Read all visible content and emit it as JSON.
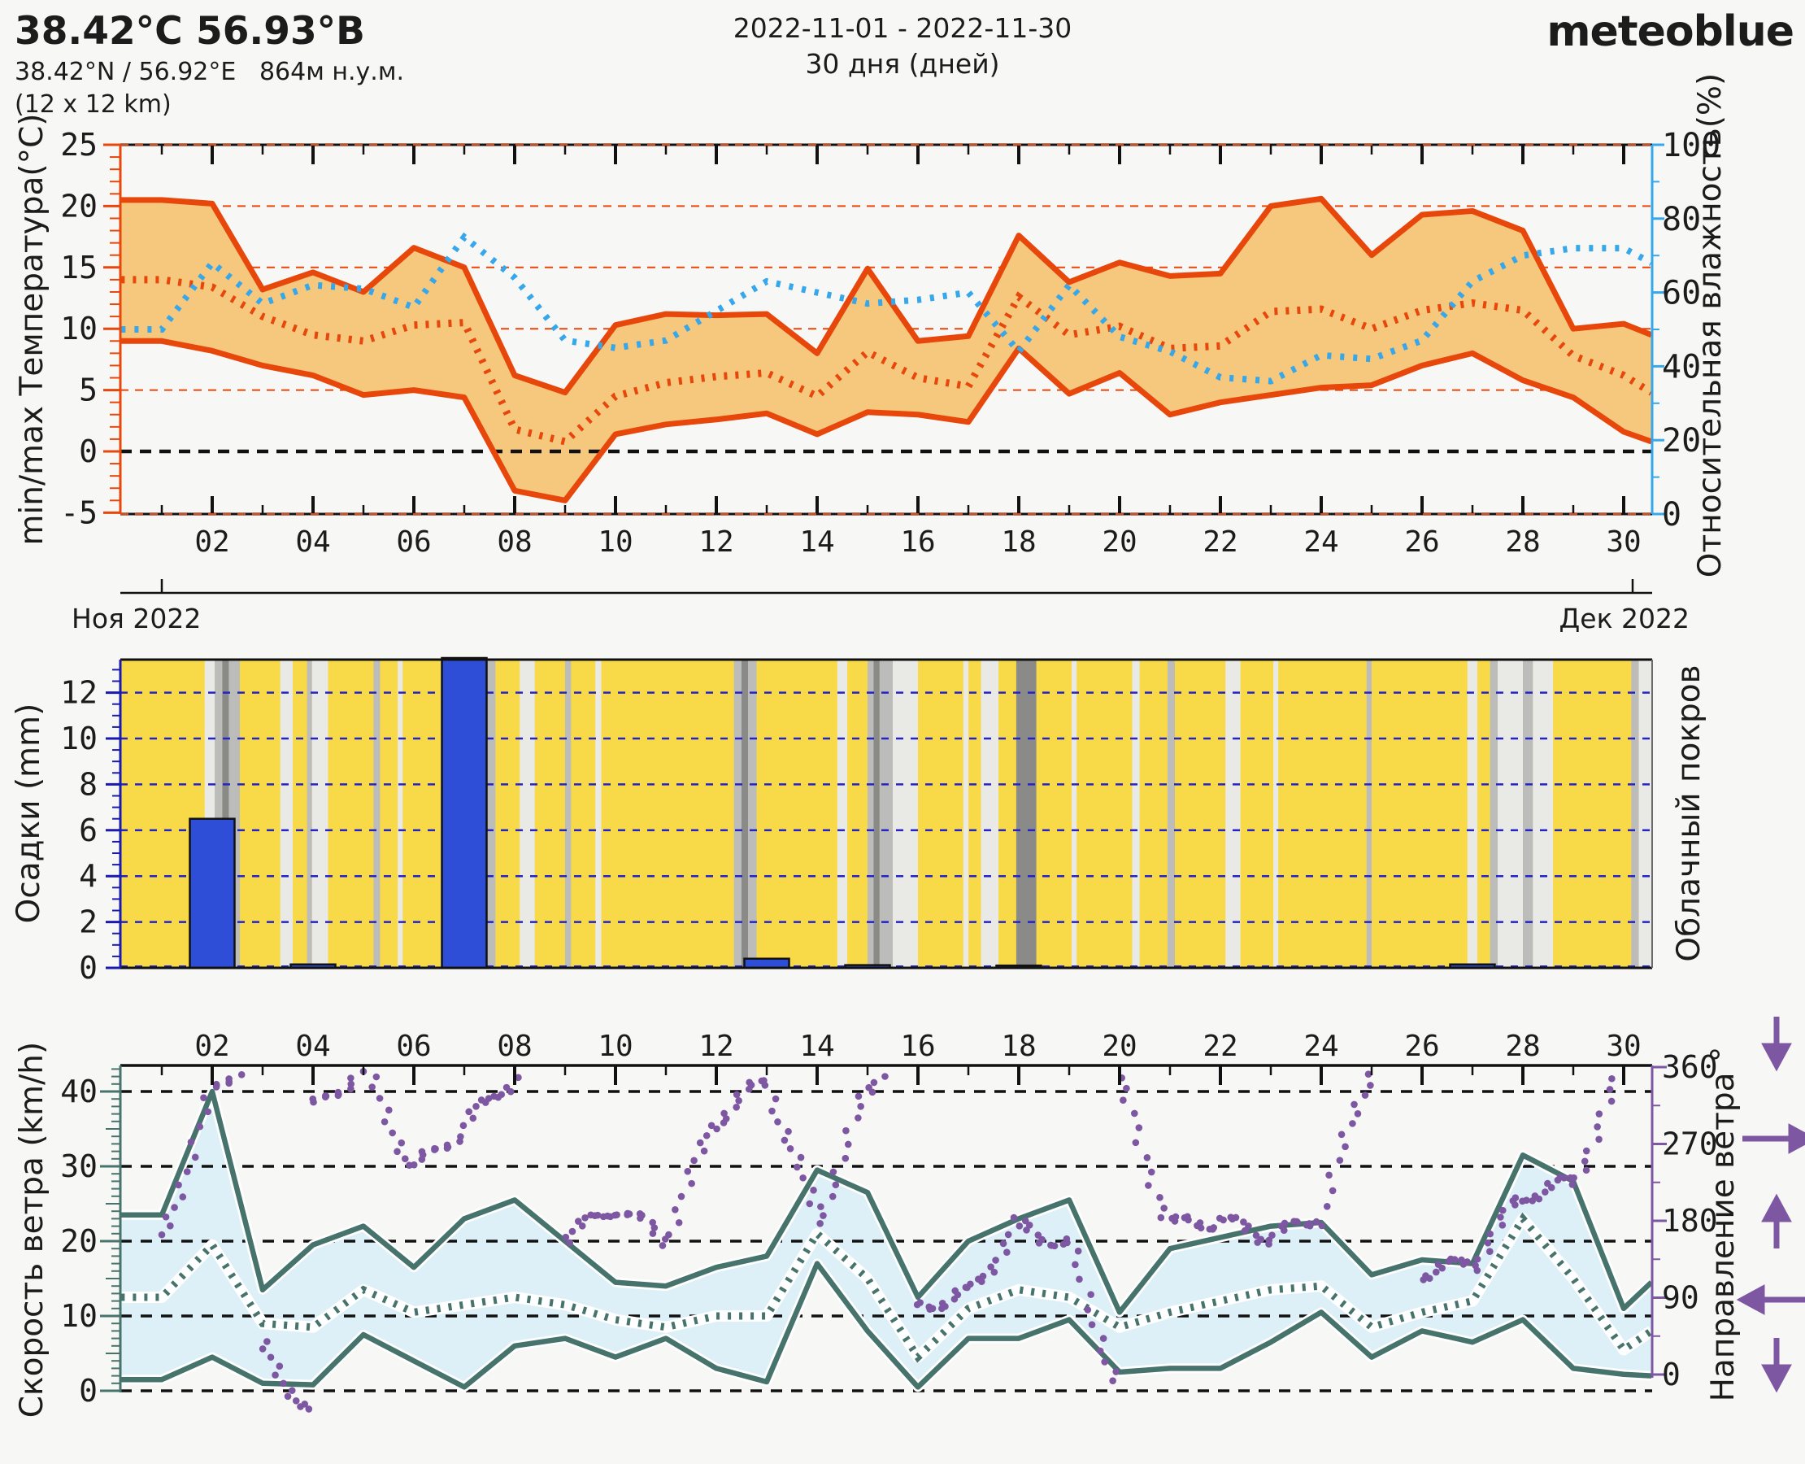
{
  "header": {
    "title": "38.42°C 56.93°B",
    "subtitle": "38.42°N / 56.92°E   864м н.у.м.",
    "resolution": "(12 x 12 km)",
    "date_range": "2022-11-01 - 2022-11-30",
    "duration": "30 дня (дней)",
    "logo": "meteoblue"
  },
  "months": {
    "left": "Ноя 2022",
    "right": "Дек 2022"
  },
  "colors": {
    "temp_line": "#e8470b",
    "temp_fill": "#f5c87d",
    "humidity": "#35a7ea",
    "precip_bar": "#2f4ed8",
    "precip_axis": "#1a1ab0",
    "cloud_sun": "#f8d948",
    "cloud_light": "#e9e9e6",
    "cloud_mid": "#bcbcba",
    "cloud_dark": "#8a8a88",
    "cloud_label": "#8c8c8a",
    "wind_line": "#47736d",
    "wind_fill": "#def0f7",
    "direction": "#7e57a3",
    "logo": "#1d4e7b",
    "text": "#1c1c1c",
    "background": "#f7f7f6"
  },
  "x_axis": {
    "day_labels": [
      "02",
      "04",
      "06",
      "08",
      "10",
      "12",
      "14",
      "16",
      "18",
      "20",
      "22",
      "24",
      "26",
      "28",
      "30"
    ]
  },
  "chart_data": [
    {
      "type": "area",
      "name": "temperature_and_humidity",
      "ylabel_left": "min/max Температура(°C)",
      "ylabel_right": "Относительная влажность(%)",
      "yticks_left": [
        -5,
        0,
        5,
        10,
        15,
        20,
        25
      ],
      "yticks_right": [
        0,
        20,
        40,
        60,
        80,
        100
      ],
      "ylim_left": [
        -5.1,
        25.0
      ],
      "ylim_right": [
        0,
        100
      ],
      "grid_left": [
        5,
        10,
        15,
        20
      ],
      "zero_line": 0,
      "x": [
        0.2,
        1,
        2,
        3,
        4,
        5,
        6,
        7,
        8,
        9,
        10,
        11,
        12,
        13,
        14,
        15,
        16,
        17,
        18,
        19,
        20,
        21,
        22,
        23,
        24,
        25,
        26,
        27,
        28,
        29,
        30,
        30.55
      ],
      "series": [
        {
          "name": "temp_max_c",
          "values": [
            20.5,
            20.5,
            20.2,
            13.2,
            14.6,
            13.0,
            16.6,
            15.0,
            6.2,
            4.8,
            10.3,
            11.2,
            11.1,
            11.2,
            8.0,
            14.9,
            9.0,
            9.4,
            17.6,
            13.8,
            15.4,
            14.3,
            14.5,
            20.0,
            20.6,
            16.0,
            19.3,
            19.6,
            18.0,
            10.0,
            10.4,
            9.5
          ]
        },
        {
          "name": "temp_min_c",
          "values": [
            9.0,
            9.0,
            8.2,
            7.0,
            6.2,
            4.6,
            5.0,
            4.4,
            -3.2,
            -4.0,
            1.4,
            2.2,
            2.6,
            3.1,
            1.4,
            3.2,
            3.0,
            2.4,
            8.4,
            4.7,
            6.4,
            3.0,
            4.0,
            4.6,
            5.2,
            5.4,
            7.0,
            8.0,
            5.8,
            4.4,
            1.6,
            0.8
          ]
        },
        {
          "name": "temp_mean_c",
          "values": [
            14.0,
            14.0,
            13.4,
            11.0,
            9.5,
            9.0,
            10.3,
            10.5,
            1.8,
            0.8,
            4.5,
            5.6,
            6.1,
            6.4,
            4.5,
            8.1,
            6.0,
            5.3,
            12.6,
            9.5,
            10.2,
            8.4,
            8.6,
            11.4,
            11.6,
            10.0,
            11.5,
            12.1,
            11.5,
            7.8,
            6.2,
            4.8
          ]
        },
        {
          "name": "rel_humidity_pct",
          "values": [
            50,
            50,
            68,
            57,
            62,
            61,
            56,
            75,
            64,
            47,
            45,
            47,
            55,
            63,
            60,
            57,
            58,
            60,
            44,
            62,
            48,
            44,
            37,
            36,
            43,
            42,
            47,
            63,
            70,
            72,
            72,
            68
          ]
        }
      ]
    },
    {
      "type": "bar",
      "name": "precipitation_and_cloud_cover",
      "ylabel_left": "Осадки (mm)",
      "ylabel_right": "Облачный покров",
      "yticks_left": [
        0,
        2,
        4,
        6,
        8,
        10,
        12
      ],
      "ylim": [
        0,
        13.4
      ],
      "x_days": [
        1,
        2,
        3,
        4,
        5,
        6,
        7,
        8,
        9,
        10,
        11,
        12,
        13,
        14,
        15,
        16,
        17,
        18,
        19,
        20,
        21,
        22,
        23,
        24,
        25,
        26,
        27,
        28,
        29,
        30
      ],
      "values": [
        0,
        6.5,
        0,
        0.15,
        0,
        0,
        13.7,
        0,
        0,
        0,
        0,
        0,
        0.4,
        0,
        0.12,
        0,
        0,
        0.1,
        0,
        0,
        0,
        0,
        0,
        0,
        0,
        0,
        0.15,
        0,
        0,
        0
      ],
      "cloud_shades": {
        "y": "sunny",
        "l": "light-cloud",
        "g": "cloud",
        "d": "dense-cloud"
      },
      "cloud_segments": [
        [
          0.2,
          1.85,
          "y"
        ],
        [
          1.85,
          2.05,
          "l"
        ],
        [
          2.05,
          2.2,
          "g"
        ],
        [
          2.2,
          2.33,
          "d"
        ],
        [
          2.33,
          2.55,
          "g"
        ],
        [
          2.55,
          3.35,
          "y"
        ],
        [
          3.35,
          3.6,
          "l"
        ],
        [
          3.6,
          3.88,
          "y"
        ],
        [
          3.88,
          3.98,
          "g"
        ],
        [
          3.98,
          4.3,
          "l"
        ],
        [
          4.3,
          5.2,
          "y"
        ],
        [
          5.2,
          5.33,
          "g"
        ],
        [
          5.33,
          5.68,
          "y"
        ],
        [
          5.68,
          5.78,
          "l"
        ],
        [
          5.78,
          6.53,
          "y"
        ],
        [
          6.53,
          6.65,
          "l"
        ],
        [
          6.65,
          7.28,
          "y"
        ],
        [
          7.28,
          7.45,
          "d"
        ],
        [
          7.45,
          7.62,
          "g"
        ],
        [
          7.62,
          8.1,
          "y"
        ],
        [
          8.1,
          8.4,
          "l"
        ],
        [
          8.4,
          9.0,
          "y"
        ],
        [
          9.0,
          9.12,
          "g"
        ],
        [
          9.12,
          9.6,
          "y"
        ],
        [
          9.6,
          9.72,
          "l"
        ],
        [
          9.72,
          12.35,
          "y"
        ],
        [
          12.35,
          12.5,
          "g"
        ],
        [
          12.5,
          12.63,
          "d"
        ],
        [
          12.63,
          12.8,
          "g"
        ],
        [
          12.8,
          14.4,
          "y"
        ],
        [
          14.4,
          14.6,
          "l"
        ],
        [
          14.6,
          15.0,
          "y"
        ],
        [
          15.0,
          15.12,
          "g"
        ],
        [
          15.12,
          15.24,
          "d"
        ],
        [
          15.24,
          15.5,
          "g"
        ],
        [
          15.5,
          16.0,
          "l"
        ],
        [
          16.0,
          16.9,
          "y"
        ],
        [
          16.9,
          17.0,
          "l"
        ],
        [
          17.0,
          17.25,
          "y"
        ],
        [
          17.25,
          17.6,
          "l"
        ],
        [
          17.6,
          17.95,
          "y"
        ],
        [
          17.95,
          18.35,
          "d"
        ],
        [
          18.35,
          19.05,
          "y"
        ],
        [
          19.05,
          19.15,
          "l"
        ],
        [
          19.15,
          20.25,
          "y"
        ],
        [
          20.25,
          20.4,
          "l"
        ],
        [
          20.4,
          20.95,
          "y"
        ],
        [
          20.95,
          21.1,
          "g"
        ],
        [
          21.1,
          22.1,
          "y"
        ],
        [
          22.1,
          22.4,
          "l"
        ],
        [
          22.4,
          23.05,
          "y"
        ],
        [
          23.05,
          23.15,
          "l"
        ],
        [
          23.15,
          24.9,
          "y"
        ],
        [
          24.9,
          25.0,
          "g"
        ],
        [
          25.0,
          26.9,
          "y"
        ],
        [
          26.9,
          27.1,
          "l"
        ],
        [
          27.1,
          27.35,
          "y"
        ],
        [
          27.35,
          27.5,
          "g"
        ],
        [
          27.5,
          28.0,
          "l"
        ],
        [
          28.0,
          28.2,
          "g"
        ],
        [
          28.2,
          28.6,
          "l"
        ],
        [
          28.6,
          30.15,
          "y"
        ],
        [
          30.15,
          30.3,
          "g"
        ],
        [
          30.3,
          30.6,
          "l"
        ]
      ]
    },
    {
      "type": "line",
      "name": "wind_speed_and_direction",
      "ylabel_left": "Скорость ветра (km/h)",
      "ylabel_right": "Направление ветра °",
      "yticks_left": [
        0,
        10,
        20,
        30,
        40
      ],
      "yticks_right": [
        0,
        90,
        180,
        270,
        360
      ],
      "ylim_left": [
        0,
        43.5
      ],
      "ylim_right": [
        0,
        360
      ],
      "x": [
        0.2,
        1,
        2,
        3,
        4,
        5,
        6,
        7,
        8,
        9,
        10,
        11,
        12,
        13,
        14,
        15,
        16,
        17,
        18,
        19,
        20,
        21,
        22,
        23,
        24,
        25,
        26,
        27,
        28,
        29,
        30,
        30.55
      ],
      "series": [
        {
          "name": "wind_max_kmh",
          "values": [
            23.5,
            23.5,
            40,
            13.5,
            19.5,
            22,
            16.5,
            23,
            25.5,
            20,
            14.5,
            14,
            16.5,
            18,
            29.5,
            26.5,
            12.5,
            20,
            23,
            25.5,
            10.5,
            19,
            20.5,
            22,
            22.5,
            15.5,
            17.5,
            17,
            31.5,
            28,
            11,
            14.5
          ]
        },
        {
          "name": "wind_min_kmh",
          "values": [
            1.5,
            1.5,
            4.5,
            1.0,
            0.8,
            7.5,
            4.0,
            0.5,
            6.0,
            7.0,
            4.5,
            7.0,
            3.0,
            1.2,
            17.0,
            8.0,
            0.5,
            7.0,
            7.0,
            9.5,
            2.5,
            3.0,
            3.0,
            6.5,
            10.5,
            4.5,
            8.0,
            6.5,
            9.5,
            3.0,
            2.2,
            2.0
          ]
        },
        {
          "name": "wind_mean_kmh",
          "values": [
            12.5,
            12.5,
            19.5,
            9.0,
            8.5,
            13.5,
            10.5,
            11.5,
            12.5,
            11.5,
            9.5,
            8.5,
            10.0,
            10.0,
            21.0,
            15.0,
            4.5,
            11.0,
            13.5,
            12.5,
            8.5,
            10.5,
            12.0,
            13.5,
            14.0,
            8.5,
            10.5,
            12.0,
            23.0,
            15.0,
            5.5,
            8.0
          ]
        },
        {
          "name": "wind_dir_deg",
          "x_days": [
            1,
            2,
            3,
            4,
            5,
            6,
            7,
            8,
            9,
            10,
            11,
            12,
            13,
            14,
            15,
            16,
            17,
            18,
            19,
            20,
            21,
            22,
            23,
            24,
            25,
            26,
            27,
            28,
            29,
            30,
            30.55
          ],
          "values": [
            160,
            330,
            30,
            310,
            360,
            240,
            290,
            350,
            160,
            195,
            160,
            300,
            345,
            180,
            330,
            80,
            95,
            175,
            150,
            340,
            175,
            180,
            160,
            185,
            360,
            120,
            130,
            210,
            225,
            360,
            40
          ]
        }
      ],
      "direction_arrows": [
        {
          "deg": 360,
          "dir": "down"
        },
        {
          "deg": 270,
          "dir": "right"
        },
        {
          "deg": 180,
          "dir": "up"
        },
        {
          "deg": 90,
          "dir": "left"
        },
        {
          "deg": 0,
          "dir": "down"
        }
      ]
    }
  ]
}
